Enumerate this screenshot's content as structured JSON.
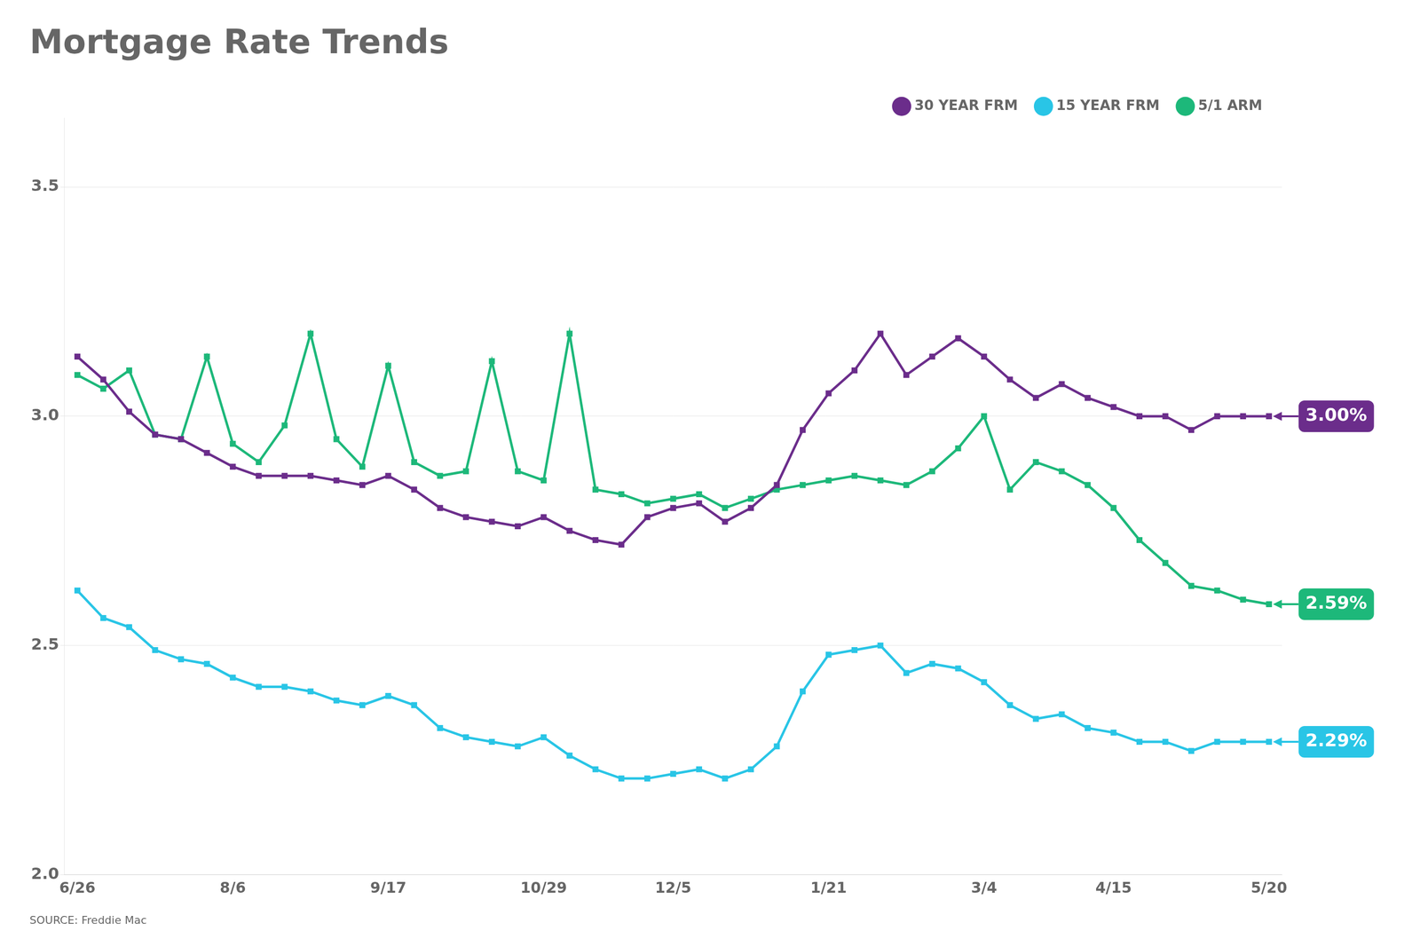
{
  "chart_data": {
    "type": "line",
    "title": "Mortgage Rate Trends",
    "source": "SOURCE: Freddie Mac",
    "categories": [
      "6/26",
      null,
      null,
      null,
      null,
      null,
      "8/6",
      null,
      null,
      null,
      null,
      null,
      "9/17",
      null,
      null,
      null,
      null,
      null,
      "10/29",
      null,
      null,
      null,
      null,
      "12/5",
      null,
      null,
      null,
      null,
      null,
      "1/21",
      null,
      null,
      null,
      null,
      null,
      "3/4",
      null,
      null,
      null,
      null,
      "4/15",
      null,
      null,
      null,
      null,
      null,
      "5/20"
    ],
    "series": [
      {
        "name": "30 YEAR FRM",
        "color": "#6B2D8B",
        "values": [
          3.13,
          3.08,
          3.01,
          2.96,
          2.95,
          2.92,
          2.89,
          2.87,
          2.87,
          2.87,
          2.86,
          2.85,
          2.87,
          2.84,
          2.8,
          2.78,
          2.77,
          2.76,
          2.78,
          2.75,
          2.73,
          2.72,
          2.78,
          2.8,
          2.81,
          2.77,
          2.8,
          2.85,
          2.97,
          3.05,
          3.1,
          3.18,
          3.09,
          3.13,
          3.17,
          3.13,
          3.08,
          3.04,
          3.07,
          3.04,
          3.02,
          3.0,
          3.0,
          2.97,
          3.0,
          3.0,
          3.0
        ]
      },
      {
        "name": "15 YEAR FRM",
        "color": "#29C5E6",
        "values": [
          2.62,
          2.56,
          2.54,
          2.49,
          2.47,
          2.46,
          2.43,
          2.41,
          2.41,
          2.4,
          2.38,
          2.37,
          2.39,
          2.37,
          2.32,
          2.3,
          2.29,
          2.28,
          2.3,
          2.26,
          2.23,
          2.21,
          2.21,
          2.22,
          2.23,
          2.21,
          2.23,
          2.28,
          2.4,
          2.48,
          2.49,
          2.5,
          2.44,
          2.46,
          2.45,
          2.42,
          2.37,
          2.34,
          2.35,
          2.32,
          2.31,
          2.29,
          2.29,
          2.27,
          2.29,
          2.29,
          2.29
        ]
      },
      {
        "name": "5/1 ARM",
        "color": "#1DB87A",
        "values": [
          3.09,
          3.06,
          3.1,
          2.96,
          2.95,
          3.13,
          2.94,
          2.9,
          2.98,
          3.18,
          2.95,
          2.89,
          3.11,
          2.9,
          2.87,
          2.88,
          3.12,
          2.88,
          2.86,
          3.18,
          2.84,
          2.83,
          2.81,
          2.82,
          2.83,
          2.8,
          2.82,
          2.84,
          2.85,
          2.86,
          2.87,
          2.86,
          2.85,
          2.88,
          2.93,
          3.0,
          2.84,
          2.9,
          2.88,
          2.85,
          2.8,
          2.73,
          2.68,
          2.63,
          2.62,
          2.6,
          2.59
        ]
      }
    ],
    "annotations": [
      {
        "text": "3.00%",
        "series": "30 YEAR FRM",
        "color": "#6B2D8B"
      },
      {
        "text": "2.59%",
        "series": "5/1 ARM",
        "color": "#1DB87A"
      },
      {
        "text": "2.29%",
        "series": "15 YEAR FRM",
        "color": "#29C5E6"
      }
    ],
    "ylim": [
      2.0,
      3.65
    ],
    "yticks": [
      {
        "value": 2.0,
        "label": "2.0"
      },
      2.5,
      {
        "value": 3.0,
        "label": "3.0"
      },
      3.5
    ],
    "grid": "y",
    "legend": "top",
    "marker": "square"
  }
}
